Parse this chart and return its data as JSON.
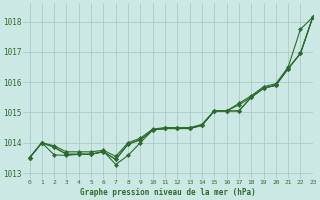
{
  "title": "Graphe pression niveau de la mer (hPa)",
  "bg_color": "#cce8e4",
  "grid_color": "#aaccc8",
  "line_color": "#2d6b2d",
  "xlim": [
    -0.5,
    23
  ],
  "ylim": [
    1012.8,
    1018.6
  ],
  "yticks": [
    1013,
    1014,
    1015,
    1016,
    1017,
    1018
  ],
  "xticks": [
    0,
    1,
    2,
    3,
    4,
    5,
    6,
    7,
    8,
    9,
    10,
    11,
    12,
    13,
    14,
    15,
    16,
    17,
    18,
    19,
    20,
    21,
    22,
    23
  ],
  "line1_x": [
    0,
    1,
    2,
    3,
    4,
    5,
    6,
    7,
    8,
    9,
    10,
    11,
    12,
    13,
    14,
    15,
    16,
    17,
    18,
    19,
    20,
    21,
    22,
    23
  ],
  "line1_y": [
    1013.5,
    1014.0,
    1013.9,
    1013.7,
    1013.7,
    1013.7,
    1013.75,
    1013.55,
    1014.0,
    1014.15,
    1014.45,
    1014.5,
    1014.5,
    1014.5,
    1014.6,
    1015.05,
    1015.05,
    1015.3,
    1015.55,
    1015.85,
    1015.95,
    1016.5,
    1017.75,
    1018.15
  ],
  "line2_x": [
    0,
    1,
    2,
    3,
    4,
    5,
    6,
    7,
    8,
    9,
    10,
    11,
    12,
    13,
    14,
    15,
    16,
    17,
    18,
    19,
    20,
    21,
    22,
    23
  ],
  "line2_y": [
    1013.5,
    1014.0,
    1013.85,
    1013.62,
    1013.62,
    1013.62,
    1013.7,
    1013.45,
    1013.95,
    1014.1,
    1014.42,
    1014.47,
    1014.47,
    1014.47,
    1014.57,
    1015.05,
    1015.05,
    1015.05,
    1015.5,
    1015.8,
    1015.9,
    1016.45,
    1016.95,
    1018.15
  ],
  "line3_x": [
    0,
    1,
    2,
    3,
    4,
    5,
    6,
    7,
    8,
    9,
    10,
    11,
    12,
    13,
    14,
    15,
    16,
    17,
    18,
    19,
    20,
    21,
    22,
    23
  ],
  "line3_y": [
    1013.5,
    1014.0,
    1013.85,
    1013.62,
    1013.62,
    1013.62,
    1013.7,
    1013.45,
    1013.95,
    1014.1,
    1014.42,
    1014.47,
    1014.47,
    1014.47,
    1014.57,
    1015.05,
    1015.05,
    1015.25,
    1015.5,
    1015.8,
    1015.9,
    1016.45,
    1016.95,
    1018.15
  ],
  "line4_x": [
    0,
    1,
    2,
    3,
    4,
    5,
    6,
    7,
    8,
    9,
    10,
    11,
    12,
    13,
    14,
    15,
    16,
    17,
    18,
    19,
    20,
    21,
    22,
    23
  ],
  "line4_y": [
    1013.5,
    1014.0,
    1013.6,
    1013.58,
    1013.62,
    1013.62,
    1013.72,
    1013.28,
    1013.58,
    1014.0,
    1014.42,
    1014.47,
    1014.47,
    1014.47,
    1014.6,
    1015.05,
    1015.05,
    1015.05,
    1015.5,
    1015.8,
    1015.9,
    1016.45,
    1016.95,
    1018.15
  ],
  "ylabel_fontsize": 5.5,
  "xlabel_fontsize": 5.5,
  "tick_fontsize": 4.5,
  "linewidth": 0.8,
  "markersize": 2.2
}
